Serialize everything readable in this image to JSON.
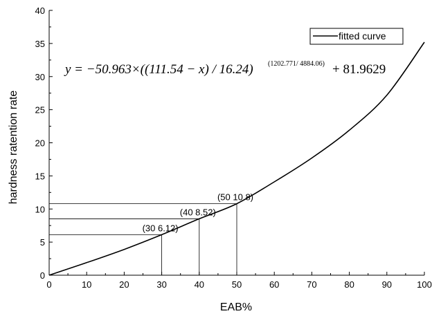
{
  "chart_data": {
    "type": "line",
    "xlabel": "EAB%",
    "ylabel": "hardness ratention rate",
    "xlim": [
      0,
      100
    ],
    "ylim": [
      0,
      40
    ],
    "xticks": [
      0,
      10,
      20,
      30,
      40,
      50,
      60,
      70,
      80,
      90,
      100
    ],
    "yticks": [
      0,
      5,
      10,
      15,
      20,
      25,
      30,
      35,
      40
    ],
    "legend": {
      "position": "top-right",
      "entries": [
        "fitted curve"
      ]
    },
    "grid": false,
    "series": [
      {
        "name": "fitted curve",
        "color": "#000000",
        "x": [
          0,
          10,
          20,
          30,
          40,
          50,
          60,
          70,
          80,
          90,
          100
        ],
        "y": [
          0,
          1.9,
          3.9,
          6.12,
          8.52,
          10.8,
          14.1,
          17.7,
          21.9,
          27.2,
          35.2
        ]
      }
    ],
    "annotations": [
      {
        "x": 30,
        "y": 6.12,
        "label": "(30 6.12)"
      },
      {
        "x": 40,
        "y": 8.52,
        "label": "(40 8.52)"
      },
      {
        "x": 50,
        "y": 10.8,
        "label": "(50 10.8)"
      }
    ],
    "equation": {
      "main": "y = −50.963×((111.54 − x) / 16.24)",
      "exponent": "(1202.771/ 4884.06)",
      "tail": "+ 81.9629"
    }
  }
}
